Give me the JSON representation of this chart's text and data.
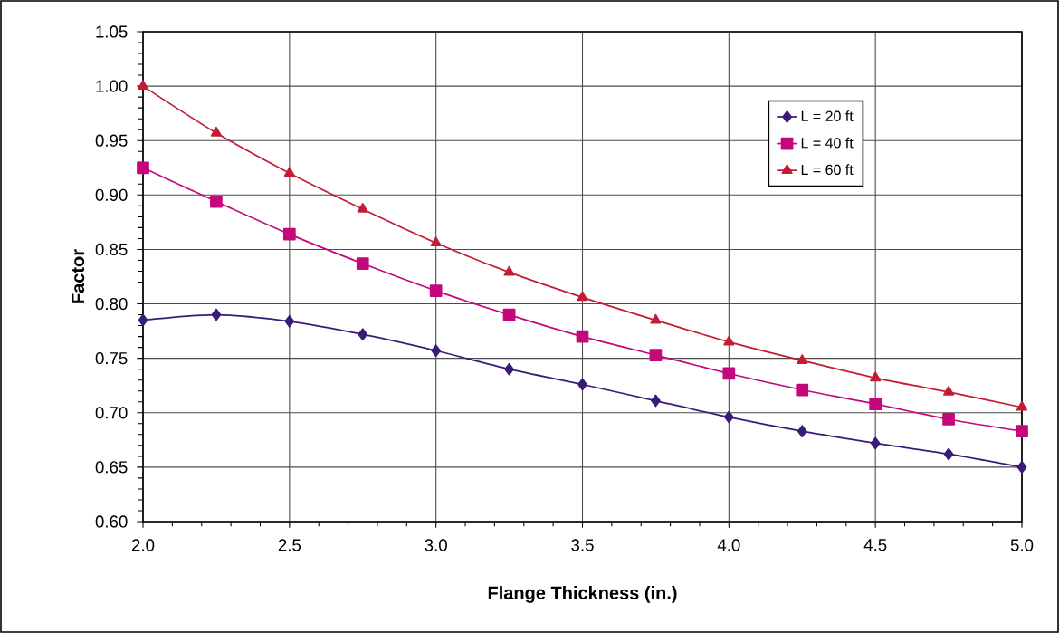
{
  "chart_data": {
    "type": "line",
    "xlabel": "Flange Thickness (in.)",
    "ylabel": "Factor",
    "x": [
      2.0,
      2.25,
      2.5,
      2.75,
      3.0,
      3.25,
      3.5,
      3.75,
      4.0,
      4.25,
      4.5,
      4.75,
      5.0
    ],
    "series": [
      {
        "name": "L = 20 ft",
        "color": "#3a1c78",
        "marker": "diamond",
        "values": [
          0.785,
          0.79,
          0.784,
          0.772,
          0.757,
          0.74,
          0.726,
          0.711,
          0.696,
          0.683,
          0.672,
          0.662,
          0.65
        ]
      },
      {
        "name": "L = 40 ft",
        "color": "#c4087c",
        "marker": "square",
        "values": [
          0.925,
          0.894,
          0.864,
          0.837,
          0.812,
          0.79,
          0.77,
          0.753,
          0.736,
          0.721,
          0.708,
          0.694,
          0.683
        ]
      },
      {
        "name": "L = 60 ft",
        "color": "#c41c34",
        "marker": "triangle",
        "values": [
          1.0,
          0.957,
          0.92,
          0.887,
          0.856,
          0.829,
          0.806,
          0.785,
          0.765,
          0.748,
          0.732,
          0.719,
          0.705
        ]
      }
    ],
    "xlim": [
      2.0,
      5.0
    ],
    "ylim": [
      0.6,
      1.05
    ],
    "xticks": [
      {
        "value": 2.0,
        "label": "2.0"
      },
      {
        "value": 2.5,
        "label": "2.5"
      },
      {
        "value": 3.0,
        "label": "3.0"
      },
      {
        "value": 3.5,
        "label": "3.5"
      },
      {
        "value": 4.0,
        "label": "4.0"
      },
      {
        "value": 4.5,
        "label": "4.5"
      },
      {
        "value": 5.0,
        "label": "5.0"
      }
    ],
    "yticks": [
      {
        "value": 0.6,
        "label": "0.60"
      },
      {
        "value": 0.65,
        "label": "0.65"
      },
      {
        "value": 0.7,
        "label": "0.70"
      },
      {
        "value": 0.75,
        "label": "0.75"
      },
      {
        "value": 0.8,
        "label": "0.80"
      },
      {
        "value": 0.85,
        "label": "0.85"
      },
      {
        "value": 0.9,
        "label": "0.90"
      },
      {
        "value": 0.95,
        "label": "0.95"
      },
      {
        "value": 1.0,
        "label": "1.00"
      },
      {
        "value": 1.05,
        "label": "1.05"
      }
    ],
    "grid": true,
    "legend": "top right",
    "line_style": "solid"
  }
}
